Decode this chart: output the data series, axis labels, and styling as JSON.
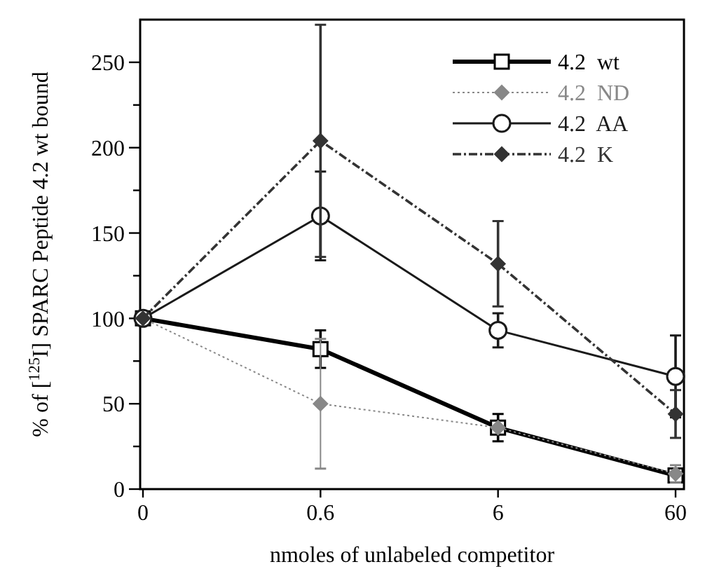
{
  "chart_data": {
    "type": "line",
    "xlabel": "nmoles of unlabeled competitor",
    "ylabel": "% of [$^{125}$I] SPARC Peptide 4.2 wt bound",
    "categories": [
      "0",
      "0.6",
      "6",
      "60"
    ],
    "ylim": [
      0,
      275
    ],
    "yticks": [
      0,
      {
        "value": 25,
        "label": null
      },
      50,
      {
        "value": 75,
        "label": null
      },
      100,
      {
        "value": 125,
        "label": null
      },
      150,
      {
        "value": 175,
        "label": null
      },
      200,
      {
        "value": 225,
        "label": null
      },
      250
    ],
    "legend": "top right",
    "grid": false,
    "series": [
      {
        "name": "4.2  wt",
        "color": "#000000",
        "values": [
          100,
          82,
          36,
          8
        ],
        "errors": [
          null,
          11,
          8,
          null
        ],
        "marker": "square",
        "line_style": "solid"
      },
      {
        "name": "4.2  ND",
        "color": "#888888",
        "values": [
          100,
          50,
          36,
          9
        ],
        "errors": [
          null,
          38,
          null,
          5
        ],
        "marker": "diamond",
        "line_style": "dotted"
      },
      {
        "name": "4.2  AA",
        "color": "#1a1a1a",
        "values": [
          100,
          160,
          93,
          66
        ],
        "errors": [
          null,
          26,
          10,
          24
        ],
        "marker": "circle",
        "line_style": "solid"
      },
      {
        "name": "4.2  K",
        "color": "#333333",
        "values": [
          100,
          204,
          132,
          44
        ],
        "errors": [
          null,
          68,
          25,
          14
        ],
        "marker": "diamond",
        "line_style": "dashed"
      }
    ]
  }
}
